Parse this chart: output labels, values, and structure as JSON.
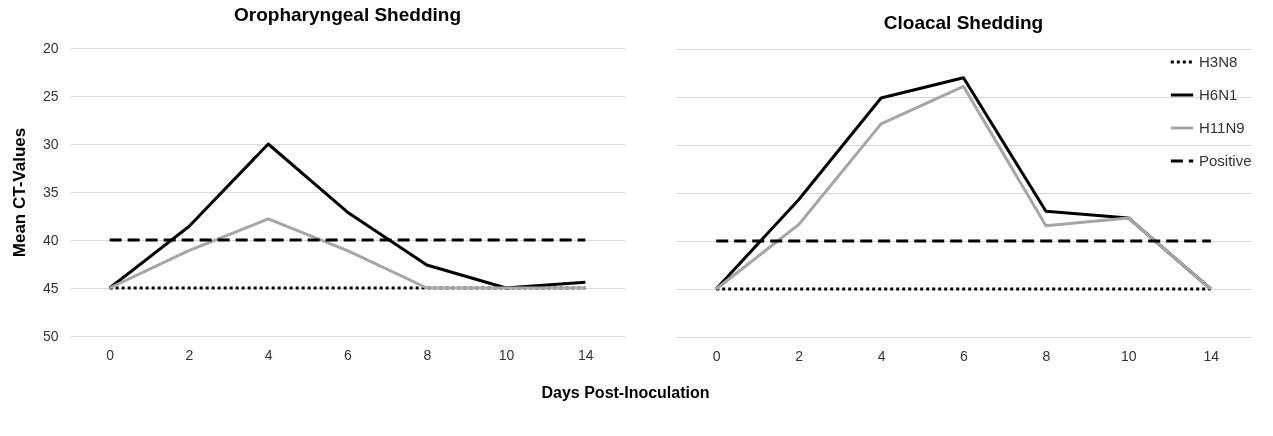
{
  "chart_data": [
    {
      "type": "line",
      "title": "Oropharyngeal Shedding",
      "xlabel": "Days Post-Inoculation",
      "ylabel": "Mean CT-Values",
      "categories": [
        "0",
        "2",
        "4",
        "6",
        "8",
        "10",
        "14"
      ],
      "series": [
        {
          "color": "#000000",
          "line_style": "dotted",
          "values": [
            45,
            45,
            45,
            45,
            45,
            45,
            45
          ]
        },
        {
          "color": "#000000",
          "line_style": "solid",
          "values": [
            45,
            38.6,
            30,
            37.1,
            42.6,
            45,
            44.4
          ]
        },
        {
          "color": "#a6a6a6",
          "line_style": "solid",
          "values": [
            45,
            41.1,
            37.8,
            41.1,
            45,
            45,
            45
          ]
        },
        {
          "color": "#000000",
          "line_style": "dashed",
          "values": [
            40,
            40,
            40,
            40,
            40,
            40,
            40
          ]
        }
      ],
      "ylim": [
        50,
        20
      ],
      "yticks": [
        20,
        25,
        30,
        35,
        40,
        45,
        50
      ],
      "grid": "y"
    },
    {
      "type": "line",
      "title": "Cloacal Shedding",
      "categories": [
        "0",
        "2",
        "4",
        "6",
        "8",
        "10",
        "14"
      ],
      "series": [
        {
          "name": "H3N8",
          "color": "#000000",
          "line_style": "dotted",
          "values": [
            45,
            45,
            45,
            45,
            45,
            45,
            45
          ]
        },
        {
          "name": "H6N1",
          "color": "#000000",
          "line_style": "solid",
          "values": [
            45,
            35.7,
            25.1,
            23.0,
            36.9,
            37.6,
            45
          ]
        },
        {
          "name": "H11N9",
          "color": "#a6a6a6",
          "line_style": "solid",
          "values": [
            45,
            38.3,
            27.8,
            23.9,
            38.4,
            37.6,
            45
          ]
        },
        {
          "name": "Positive",
          "color": "#000000",
          "line_style": "dashed",
          "values": [
            40,
            40,
            40,
            40,
            40,
            40,
            40
          ]
        }
      ],
      "ylim": [
        50,
        20
      ],
      "yticks": [
        20,
        25,
        30,
        35,
        40,
        45,
        50
      ],
      "grid": "y",
      "legend": "top right",
      "tick_labels": "x"
    }
  ]
}
